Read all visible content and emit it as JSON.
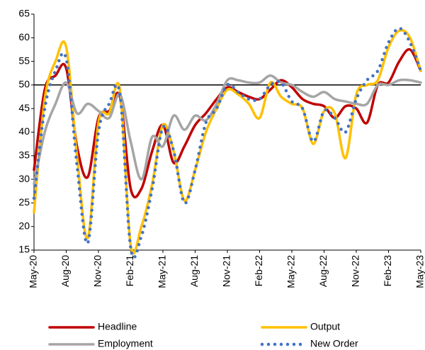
{
  "chart_data": {
    "type": "line",
    "categories": [
      "May-20",
      null,
      null,
      "Aug-20",
      null,
      null,
      "Nov-20",
      null,
      null,
      "Feb-21",
      null,
      null,
      "May-21",
      null,
      null,
      "Aug-21",
      null,
      null,
      "Nov-21",
      null,
      null,
      "Feb-22",
      null,
      null,
      "May-22",
      null,
      null,
      "Aug-22",
      null,
      null,
      "Nov-22",
      null,
      null,
      "Feb-23",
      null,
      null,
      "May-23"
    ],
    "series": [
      {
        "name": "Headline",
        "color": "#c00000",
        "style": "solid",
        "values": [
          32,
          49,
          52,
          53.5,
          37,
          30.5,
          43,
          44.5,
          47.5,
          28,
          28,
          36,
          41.5,
          33.5,
          37,
          41.5,
          44,
          47,
          49.5,
          48.5,
          47.5,
          47,
          49,
          51,
          49.5,
          47,
          46,
          45.5,
          43,
          45.5,
          45,
          42,
          50,
          50.5,
          55,
          57.5,
          53
        ]
      },
      {
        "name": "Output",
        "color": "#ffc000",
        "style": "solid",
        "values": [
          23,
          47,
          55,
          58,
          35,
          17.5,
          42,
          44,
          49,
          16,
          20,
          29,
          41.5,
          36,
          25.5,
          32,
          40,
          45,
          49,
          48,
          46,
          43,
          50.5,
          47.5,
          46,
          45,
          37.5,
          44.5,
          44,
          34.5,
          48,
          50,
          51,
          58,
          61.5,
          60,
          53
        ]
      },
      {
        "name": "Employment",
        "color": "#a5a5a5",
        "style": "solid",
        "values": [
          29,
          40,
          46,
          50.5,
          44,
          46,
          44.5,
          43,
          48,
          38,
          30,
          39,
          37,
          43.5,
          40.5,
          43.5,
          42.5,
          46,
          51,
          51,
          50.5,
          50.5,
          52,
          50.5,
          50,
          48.5,
          47.5,
          48.5,
          47,
          46.5,
          46,
          46,
          50,
          50,
          51,
          51,
          50.5
        ]
      },
      {
        "name": "New Order",
        "color": "#4472c4",
        "style": "dotted",
        "values": [
          26,
          45,
          53,
          55.5,
          33,
          16.5,
          40,
          46,
          48,
          15.5,
          18,
          28,
          41,
          36,
          25,
          32,
          42,
          45,
          50,
          48.5,
          47,
          47,
          50,
          50.5,
          46.5,
          45,
          38,
          44.5,
          43,
          40,
          47,
          51,
          53,
          59,
          62,
          59,
          53
        ]
      }
    ],
    "ylim": [
      15,
      65
    ],
    "yticks": [
      15,
      20,
      25,
      30,
      35,
      40,
      45,
      50,
      55,
      60,
      65
    ],
    "reference_line": 50,
    "grid": false,
    "legend": "bottom"
  }
}
